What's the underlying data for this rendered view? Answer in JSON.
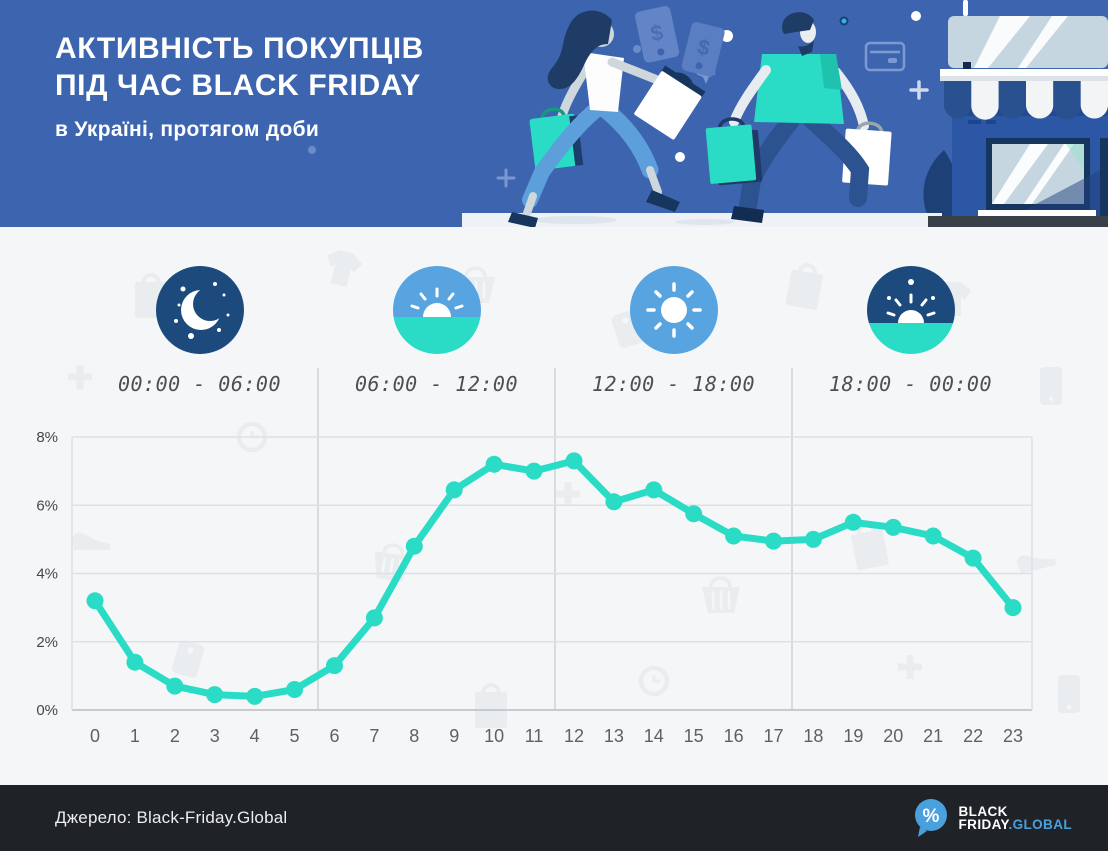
{
  "header": {
    "title_line1": "АКТИВНІСТЬ ПОКУПЦІВ",
    "title_line2": "ПІД ЧАС BLACK FRIDAY",
    "subtitle": "в Україні, протягом доби"
  },
  "header_illustration": {
    "description": "two shoppers running with bags toward a storefront",
    "tag_symbol": "$",
    "icons": [
      "price-tags-icon",
      "credit-card-icon",
      "plus-icon",
      "sparkle-icon",
      "storefront-icon",
      "shopper-woman-icon",
      "shopper-man-icon"
    ]
  },
  "periods": [
    {
      "icon": "night-icon",
      "label": "00:00 - 06:00"
    },
    {
      "icon": "sunrise-icon",
      "label": "06:00 - 12:00"
    },
    {
      "icon": "day-icon",
      "label": "12:00 - 18:00"
    },
    {
      "icon": "sunset-icon",
      "label": "18:00 - 00:00"
    }
  ],
  "colors": {
    "header_bg": "#3c64af",
    "body_bg": "#f5f6f8",
    "navy": "#1c4a7d",
    "light_blue": "#58a4e0",
    "teal": "#2adcc5",
    "grid": "#dde0e4",
    "footer_bg": "#1f2327",
    "logo_blue": "#4aa0dc"
  },
  "chart_data": {
    "type": "line",
    "title": "Активність покупців під час Black Friday в Україні, протягом доби",
    "unit": "%",
    "xlabel": "",
    "ylabel": "",
    "categories": [
      "0",
      "1",
      "2",
      "3",
      "4",
      "5",
      "6",
      "7",
      "8",
      "9",
      "10",
      "11",
      "12",
      "13",
      "14",
      "15",
      "16",
      "17",
      "18",
      "19",
      "20",
      "21",
      "22",
      "23"
    ],
    "values": [
      3.2,
      1.4,
      0.7,
      0.45,
      0.4,
      0.6,
      1.3,
      2.7,
      4.8,
      6.45,
      7.2,
      7.0,
      7.3,
      6.1,
      6.45,
      5.75,
      5.1,
      4.95,
      5.0,
      5.5,
      5.35,
      5.1,
      4.45,
      3.0
    ],
    "ylim": [
      0,
      8
    ],
    "y_ticks": [
      "0%",
      "2%",
      "4%",
      "6%",
      "8%"
    ],
    "grid": true,
    "legend": false,
    "line_color": "#2adcc5",
    "point_color": "#2adcc5"
  },
  "footer": {
    "source": "Джерело: Black-Friday.Global",
    "logo": {
      "icon": "percent-bubble-icon",
      "percent": "%",
      "line1": "BLACK",
      "line2_white": "FRIDAY",
      "line2_accent": ".GLOBAL"
    }
  }
}
